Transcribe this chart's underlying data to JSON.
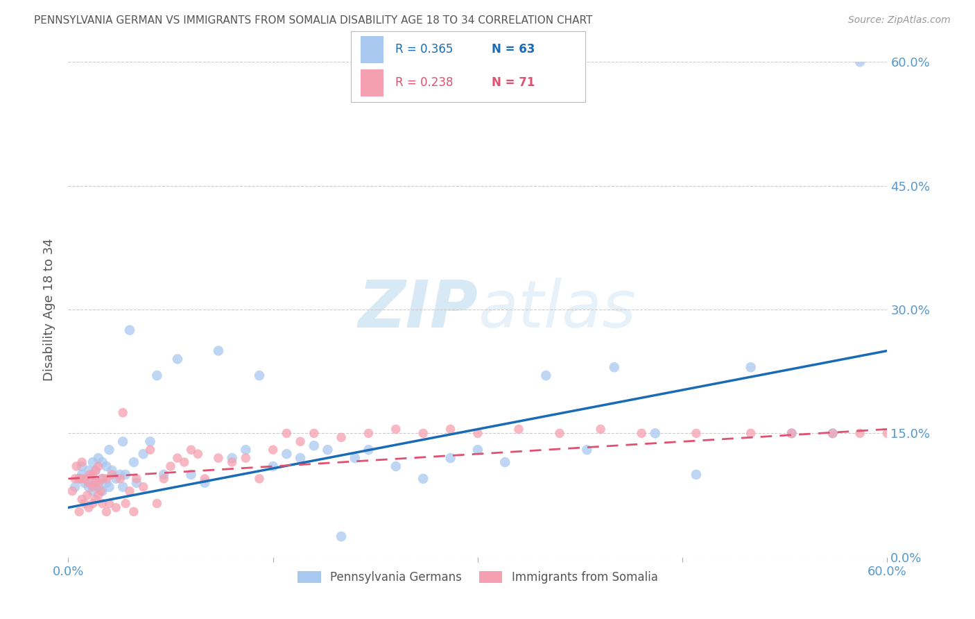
{
  "title": "PENNSYLVANIA GERMAN VS IMMIGRANTS FROM SOMALIA DISABILITY AGE 18 TO 34 CORRELATION CHART",
  "source": "Source: ZipAtlas.com",
  "ylabel": "Disability Age 18 to 34",
  "xlim": [
    0.0,
    0.6
  ],
  "ylim": [
    0.0,
    0.6
  ],
  "ytick_labels": [
    "0.0%",
    "15.0%",
    "30.0%",
    "45.0%",
    "60.0%"
  ],
  "ytick_values": [
    0.0,
    0.15,
    0.3,
    0.45,
    0.6
  ],
  "xtick_labels": [
    "0.0%",
    "60.0%"
  ],
  "xtick_values": [
    0.0,
    0.6
  ],
  "series1_label": "Pennsylvania Germans",
  "series1_color": "#a8c8f0",
  "series1_line_color": "#1a6bb5",
  "series1_R": 0.365,
  "series1_N": 63,
  "series2_label": "Immigrants from Somalia",
  "series2_color": "#f5a0b0",
  "series2_line_color": "#e05070",
  "series2_R": 0.238,
  "series2_N": 71,
  "watermark_zip": "ZIP",
  "watermark_atlas": "atlas",
  "background_color": "#ffffff",
  "grid_color": "#cccccc",
  "axis_color": "#5599cc",
  "series1_x": [
    0.005,
    0.008,
    0.01,
    0.01,
    0.012,
    0.015,
    0.015,
    0.015,
    0.018,
    0.018,
    0.02,
    0.02,
    0.022,
    0.022,
    0.025,
    0.025,
    0.025,
    0.028,
    0.028,
    0.03,
    0.03,
    0.032,
    0.035,
    0.038,
    0.04,
    0.04,
    0.042,
    0.045,
    0.048,
    0.05,
    0.055,
    0.06,
    0.065,
    0.07,
    0.08,
    0.09,
    0.1,
    0.11,
    0.12,
    0.13,
    0.14,
    0.15,
    0.16,
    0.17,
    0.18,
    0.19,
    0.2,
    0.21,
    0.22,
    0.24,
    0.26,
    0.28,
    0.3,
    0.32,
    0.35,
    0.38,
    0.4,
    0.43,
    0.46,
    0.5,
    0.53,
    0.56,
    0.58
  ],
  "series1_y": [
    0.085,
    0.095,
    0.1,
    0.11,
    0.09,
    0.085,
    0.095,
    0.105,
    0.08,
    0.115,
    0.09,
    0.105,
    0.085,
    0.12,
    0.08,
    0.095,
    0.115,
    0.09,
    0.11,
    0.085,
    0.13,
    0.105,
    0.095,
    0.1,
    0.085,
    0.14,
    0.1,
    0.275,
    0.115,
    0.09,
    0.125,
    0.14,
    0.22,
    0.1,
    0.24,
    0.1,
    0.09,
    0.25,
    0.12,
    0.13,
    0.22,
    0.11,
    0.125,
    0.12,
    0.135,
    0.13,
    0.025,
    0.12,
    0.13,
    0.11,
    0.095,
    0.12,
    0.13,
    0.115,
    0.22,
    0.13,
    0.23,
    0.15,
    0.1,
    0.23,
    0.15,
    0.15,
    0.6
  ],
  "series2_x": [
    0.003,
    0.005,
    0.006,
    0.008,
    0.008,
    0.01,
    0.01,
    0.01,
    0.012,
    0.012,
    0.014,
    0.015,
    0.015,
    0.016,
    0.018,
    0.018,
    0.018,
    0.02,
    0.02,
    0.02,
    0.022,
    0.022,
    0.022,
    0.024,
    0.025,
    0.025,
    0.028,
    0.028,
    0.03,
    0.032,
    0.035,
    0.038,
    0.04,
    0.042,
    0.045,
    0.048,
    0.05,
    0.055,
    0.06,
    0.065,
    0.07,
    0.075,
    0.08,
    0.085,
    0.09,
    0.095,
    0.1,
    0.11,
    0.12,
    0.13,
    0.14,
    0.15,
    0.16,
    0.17,
    0.18,
    0.2,
    0.22,
    0.24,
    0.26,
    0.28,
    0.3,
    0.33,
    0.36,
    0.39,
    0.42,
    0.46,
    0.5,
    0.53,
    0.56,
    0.58,
    0.6
  ],
  "series2_y": [
    0.08,
    0.095,
    0.11,
    0.055,
    0.095,
    0.07,
    0.095,
    0.115,
    0.065,
    0.095,
    0.075,
    0.06,
    0.09,
    0.1,
    0.065,
    0.085,
    0.1,
    0.07,
    0.09,
    0.105,
    0.075,
    0.09,
    0.11,
    0.08,
    0.065,
    0.095,
    0.055,
    0.095,
    0.065,
    0.1,
    0.06,
    0.095,
    0.175,
    0.065,
    0.08,
    0.055,
    0.095,
    0.085,
    0.13,
    0.065,
    0.095,
    0.11,
    0.12,
    0.115,
    0.13,
    0.125,
    0.095,
    0.12,
    0.115,
    0.12,
    0.095,
    0.13,
    0.15,
    0.14,
    0.15,
    0.145,
    0.15,
    0.155,
    0.15,
    0.155,
    0.15,
    0.155,
    0.15,
    0.155,
    0.15,
    0.15,
    0.15,
    0.15,
    0.15,
    0.15,
    0.15
  ],
  "series1_line_x": [
    0.0,
    0.6
  ],
  "series1_line_y": [
    0.06,
    0.25
  ],
  "series2_line_x": [
    0.0,
    0.6
  ],
  "series2_line_y": [
    0.095,
    0.155
  ]
}
